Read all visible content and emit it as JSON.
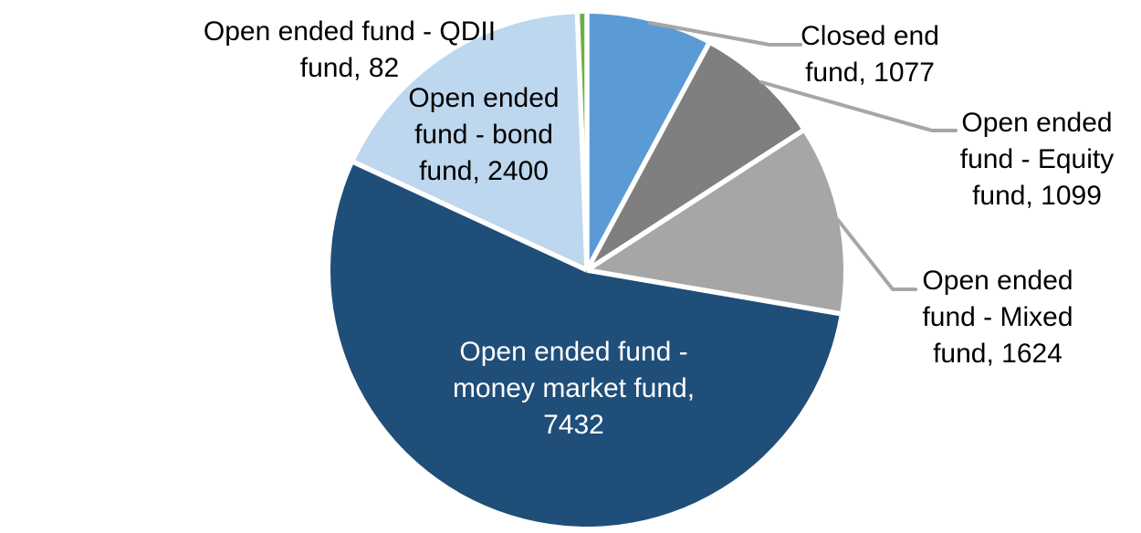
{
  "chart_data": {
    "type": "pie",
    "title": "",
    "direction": "clockwise",
    "start_angle_deg": 0,
    "legend": "none",
    "background_color": "#FFFFFF",
    "separator_color": "#FFFFFF",
    "leader_line_color": "#A6A6A6",
    "slices": [
      {
        "name": "Closed end fund",
        "value": 1077,
        "color": "#5B9BD5",
        "label_lines": [
          "Closed end",
          "fund, 1077"
        ],
        "label_color": "#000000",
        "label_position": "outside",
        "leader_line": true
      },
      {
        "name": "Open ended fund - Equity fund",
        "value": 1099,
        "color": "#7F7F7F",
        "label_lines": [
          "Open ended",
          "fund - Equity",
          "fund, 1099"
        ],
        "label_color": "#000000",
        "label_position": "outside",
        "leader_line": true
      },
      {
        "name": "Open ended fund - Mixed fund",
        "value": 1624,
        "color": "#A6A6A6",
        "label_lines": [
          "Open ended",
          "fund - Mixed",
          "fund, 1624"
        ],
        "label_color": "#000000",
        "label_position": "outside",
        "leader_line": true
      },
      {
        "name": "Open ended fund - money market fund",
        "value": 7432,
        "color": "#1F4E79",
        "label_lines": [
          "Open ended fund -",
          "money market fund,",
          "7432"
        ],
        "label_color": "#FFFFFF",
        "label_position": "inside",
        "leader_line": false
      },
      {
        "name": "Open ended fund - bond fund",
        "value": 2400,
        "color": "#BDD7EE",
        "label_lines": [
          "Open ended",
          "fund - bond",
          "fund, 2400"
        ],
        "label_color": "#000000",
        "label_position": "inside",
        "leader_line": false
      },
      {
        "name": "Open ended fund - QDII fund",
        "value": 82,
        "color": "#70AD47",
        "label_lines": [
          "Open ended fund - QDII",
          "fund, 82"
        ],
        "label_color": "#000000",
        "label_position": "outside",
        "leader_line": false
      }
    ]
  }
}
